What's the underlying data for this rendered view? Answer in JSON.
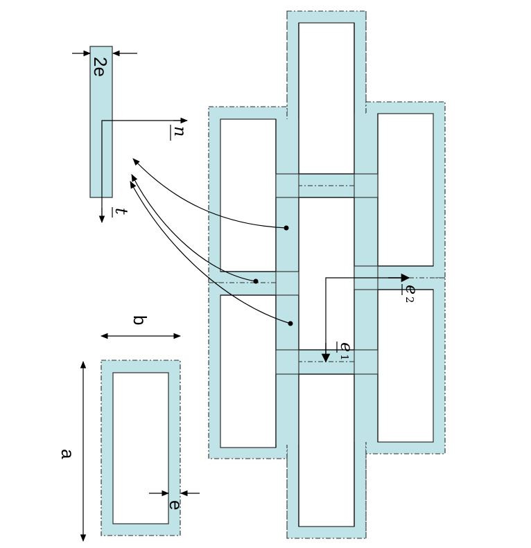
{
  "labels": {
    "wall_width": "2e",
    "normal_vector": "n",
    "tangent_vector": "t",
    "cell_height": "a",
    "cell_width": "b",
    "thickness": "e",
    "basis_1": "e",
    "basis_1_index": "1",
    "basis_2": "e",
    "basis_2_index": "2"
  },
  "colors": {
    "wall_fill": "#bfe3e6",
    "outline": "#2b2b2b"
  }
}
